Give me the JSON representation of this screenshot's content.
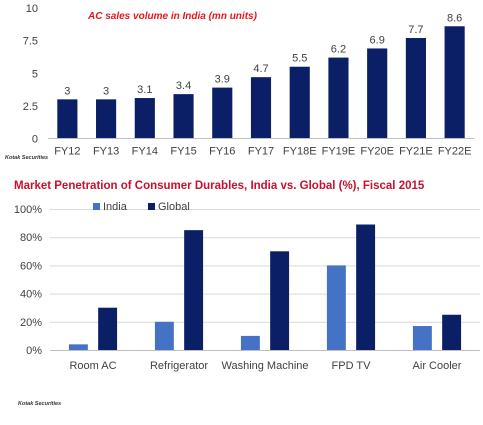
{
  "chart_data": [
    {
      "type": "bar",
      "title": "AC sales volume in India (mn units)",
      "categories": [
        "FY12",
        "FY13",
        "FY14",
        "FY15",
        "FY16",
        "FY17",
        "FY18E",
        "FY19E",
        "FY20E",
        "FY21E",
        "FY22E"
      ],
      "values": [
        3,
        3,
        3.1,
        3.4,
        3.9,
        4.7,
        5.5,
        6.2,
        6.9,
        7.7,
        8.6
      ],
      "data_labels": [
        "3",
        "3",
        "3.1",
        "3.4",
        "3.9",
        "4.7",
        "5.5",
        "6.2",
        "6.9",
        "7.7",
        "8.6"
      ],
      "ylim": [
        0,
        10
      ],
      "yticks": [
        "0",
        "2.5",
        "5",
        "7.5",
        "10"
      ],
      "colors": {
        "bar": "#0b1f66",
        "title": "#e8141d"
      },
      "source": "Kotak Securities"
    },
    {
      "type": "bar",
      "title": "Market Penetration of Consumer Durables, India vs. Global (%), Fiscal 2015",
      "categories": [
        "Room AC",
        "Refrigerator",
        "Washing Machine",
        "FPD TV",
        "Air Cooler"
      ],
      "series": [
        {
          "name": "India",
          "values": [
            4,
            20,
            10,
            60,
            17
          ]
        },
        {
          "name": "Global",
          "values": [
            30,
            85,
            70,
            89,
            25
          ]
        }
      ],
      "ylim": [
        0,
        100
      ],
      "yticks": [
        "0%",
        "20%",
        "40%",
        "60%",
        "80%",
        "100%"
      ],
      "legend_position": "top-left",
      "colors": {
        "India": "#4472c4",
        "Global": "#0b1f66",
        "title": "#c8102e"
      },
      "source": "Kotak Securities"
    }
  ]
}
